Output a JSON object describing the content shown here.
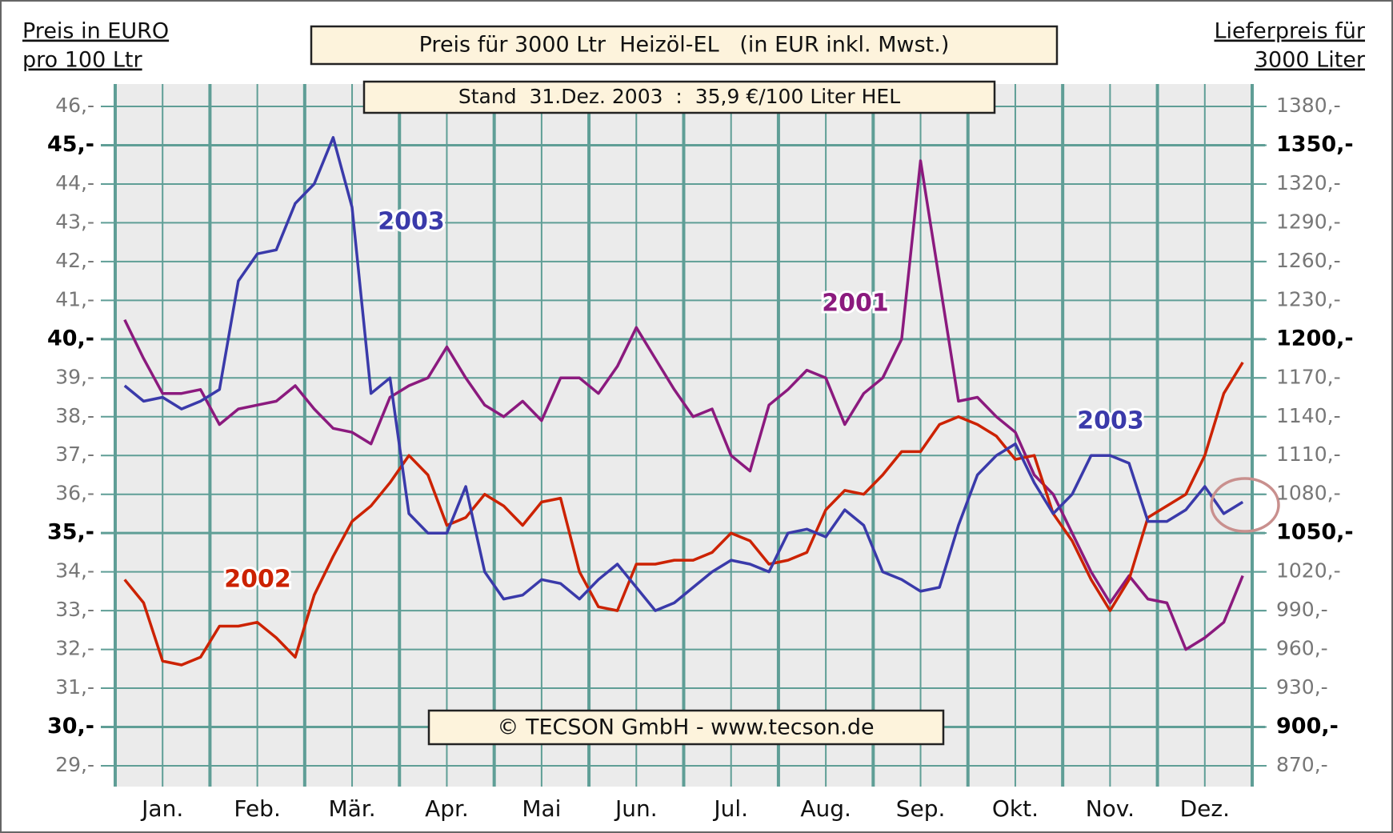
{
  "chart_data": {
    "type": "line",
    "title": "Preis für 3000 Ltr  Heizöl-EL   (in EUR inkl. Mwst.)",
    "subtitle": "Stand  31.Dez. 2003  :  35,9 €/100 Liter HEL",
    "credit": "© TECSON GmbH - www.tecson.de",
    "ylabel": [
      "Preis in EURO",
      "pro 100 Ltr"
    ],
    "y2label": [
      "Lieferpreis für",
      "3000 Liter"
    ],
    "categories": [
      null,
      null,
      "Jan.",
      null,
      null,
      null,
      null,
      "Feb.",
      null,
      null,
      null,
      null,
      "Mär.",
      null,
      null,
      null,
      null,
      "Apr.",
      null,
      null,
      null,
      null,
      "Mai",
      null,
      null,
      null,
      null,
      "Jun.",
      null,
      null,
      null,
      null,
      "Jul.",
      null,
      null,
      null,
      null,
      "Aug.",
      null,
      null,
      null,
      null,
      "Sep.",
      null,
      null,
      null,
      null,
      "Okt.",
      null,
      null,
      null,
      null,
      "Nov.",
      null,
      null,
      null,
      null,
      "Dez.",
      null,
      null
    ],
    "ylim": [
      29,
      46
    ],
    "yticks": [
      {
        "value": 29,
        "label": "29,-"
      },
      {
        "value": 30,
        "label": "30,-"
      },
      {
        "value": 31,
        "label": "31,-"
      },
      {
        "value": 32,
        "label": "32,-"
      },
      {
        "value": 33,
        "label": "33,-"
      },
      {
        "value": 34,
        "label": "34,-"
      },
      {
        "value": 35,
        "label": "35,-"
      },
      {
        "value": 36,
        "label": "36,-"
      },
      {
        "value": 37,
        "label": "37,-"
      },
      {
        "value": 38,
        "label": "38,-"
      },
      {
        "value": 39,
        "label": "39,-"
      },
      {
        "value": 40,
        "label": "40,-"
      },
      {
        "value": 41,
        "label": "41,-"
      },
      {
        "value": 42,
        "label": "42,-"
      },
      {
        "value": 43,
        "label": "43,-"
      },
      {
        "value": 44,
        "label": "44,-"
      },
      {
        "value": 45,
        "label": "45,-"
      },
      {
        "value": 46,
        "label": "46,-"
      }
    ],
    "y2lim": [
      870,
      1380
    ],
    "y2ticks": [
      {
        "value": 870,
        "label": "870,-"
      },
      {
        "value": 900,
        "label": "900,-"
      },
      {
        "value": 930,
        "label": "930,-"
      },
      {
        "value": 960,
        "label": "960,-"
      },
      {
        "value": 990,
        "label": "990,-"
      },
      {
        "value": 1020,
        "label": "1020,-"
      },
      {
        "value": 1050,
        "label": "1050,-"
      },
      {
        "value": 1080,
        "label": "1080,-"
      },
      {
        "value": 1110,
        "label": "1110,-"
      },
      {
        "value": 1140,
        "label": "1140,-"
      },
      {
        "value": 1170,
        "label": "1170,-"
      },
      {
        "value": 1200,
        "label": "1200,-"
      },
      {
        "value": 1230,
        "label": "1230,-"
      },
      {
        "value": 1260,
        "label": "1260,-"
      },
      {
        "value": 1290,
        "label": "1290,-"
      },
      {
        "value": 1320,
        "label": "1320,-"
      },
      {
        "value": 1350,
        "label": "1350,-"
      },
      {
        "value": 1380,
        "label": "1380,-"
      }
    ],
    "grid": true,
    "grid_color": "#5f9e96",
    "series": [
      {
        "name": "2001",
        "color": "#8b1a7e",
        "values": [
          40.5,
          39.5,
          38.6,
          38.6,
          38.7,
          37.8,
          38.2,
          38.3,
          38.4,
          38.8,
          38.2,
          37.7,
          37.6,
          37.3,
          38.5,
          38.8,
          39.0,
          39.8,
          39.0,
          38.3,
          38.0,
          38.4,
          37.9,
          39.0,
          39.0,
          38.6,
          39.3,
          40.3,
          39.5,
          38.7,
          38.0,
          38.2,
          37.0,
          36.6,
          38.3,
          38.7,
          39.2,
          39.0,
          37.8,
          38.6,
          39.0,
          40.0,
          44.6,
          41.5,
          38.4,
          38.5,
          38.0,
          37.6,
          36.5,
          36.0,
          35.0,
          34.0,
          33.2,
          33.9,
          33.3,
          33.2,
          32.0,
          32.3,
          32.7,
          33.9
        ]
      },
      {
        "name": "2002",
        "color": "#cc2200",
        "values": [
          33.8,
          33.2,
          31.7,
          31.6,
          31.8,
          32.6,
          32.6,
          32.7,
          32.3,
          31.8,
          33.4,
          34.4,
          35.3,
          35.7,
          36.3,
          37.0,
          36.5,
          35.2,
          35.4,
          36.0,
          35.7,
          35.2,
          35.8,
          35.9,
          34.0,
          33.1,
          33.0,
          34.2,
          34.2,
          34.3,
          34.3,
          34.5,
          35.0,
          34.8,
          34.2,
          34.3,
          34.5,
          35.6,
          36.1,
          36.0,
          36.5,
          37.1,
          37.1,
          37.8,
          38.0,
          37.8,
          37.5,
          36.9,
          37.0,
          35.5,
          34.8,
          33.8,
          33.0,
          33.8,
          35.4,
          35.7,
          36.0,
          37.0,
          38.6,
          39.4
        ]
      },
      {
        "name": "2003",
        "color": "#3a3aaa",
        "values": [
          38.8,
          38.4,
          38.5,
          38.2,
          38.4,
          38.7,
          41.5,
          42.2,
          42.3,
          43.5,
          44.0,
          45.2,
          43.4,
          38.6,
          39.0,
          35.5,
          35.0,
          35.0,
          36.2,
          34.0,
          33.3,
          33.4,
          33.8,
          33.7,
          33.3,
          33.8,
          34.2,
          33.6,
          33.0,
          33.2,
          33.6,
          34.0,
          34.3,
          34.2,
          34.0,
          35.0,
          35.1,
          34.9,
          35.6,
          35.2,
          34.0,
          33.8,
          33.5,
          33.6,
          35.2,
          36.5,
          37.0,
          37.3,
          36.3,
          35.5,
          36.0,
          37.0,
          37.0,
          36.8,
          35.3,
          35.3,
          35.6,
          36.2,
          35.5,
          35.8
        ]
      }
    ],
    "annotations": [
      "2003"
    ]
  }
}
